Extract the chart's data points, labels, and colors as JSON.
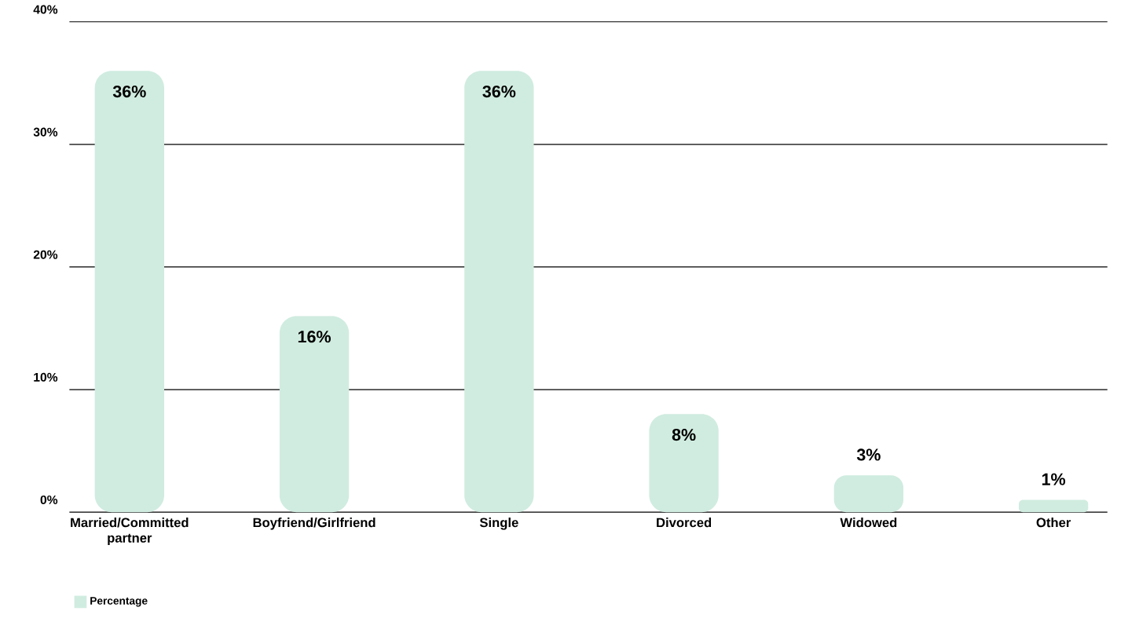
{
  "chart_data": {
    "type": "bar",
    "categories": [
      "Married/Committed partner",
      "Boyfriend/Girlfriend",
      "Single",
      "Divorced",
      "Widowed",
      "Other"
    ],
    "series": [
      {
        "name": "Percentage",
        "color": "#d0ece0",
        "values": [
          36,
          16,
          36,
          8,
          3,
          1
        ],
        "value_labels": [
          "36%",
          "16%",
          "36%",
          "8%",
          "3%",
          "1%"
        ]
      }
    ],
    "ylim": [
      0,
      40
    ],
    "yticks": [
      {
        "value": 0,
        "label": "0%"
      },
      {
        "value": 10,
        "label": "10%"
      },
      {
        "value": 20,
        "label": "20%"
      },
      {
        "value": 30,
        "label": "30%"
      },
      {
        "value": 40,
        "label": "40%"
      }
    ],
    "grid": "y",
    "legend": "bottom left"
  }
}
